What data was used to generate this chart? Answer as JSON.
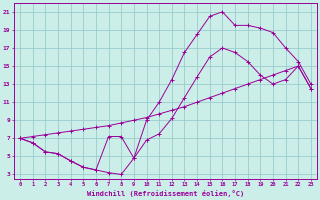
{
  "xlabel": "Windchill (Refroidissement éolien,°C)",
  "background_color": "#cceee8",
  "grid_color": "#99cccc",
  "line_color": "#990099",
  "xlim": [
    -0.5,
    23.5
  ],
  "ylim": [
    2.5,
    22
  ],
  "xticks": [
    0,
    1,
    2,
    3,
    4,
    5,
    6,
    7,
    8,
    9,
    10,
    11,
    12,
    13,
    14,
    15,
    16,
    17,
    18,
    19,
    20,
    21,
    22,
    23
  ],
  "yticks": [
    3,
    5,
    7,
    9,
    11,
    13,
    15,
    17,
    19,
    21
  ],
  "line1_x": [
    0,
    1,
    2,
    3,
    4,
    5,
    6,
    7,
    8,
    9,
    10,
    11,
    12,
    13,
    14,
    15,
    16,
    17,
    18,
    19,
    20,
    21,
    22,
    23
  ],
  "line1_y": [
    7.0,
    6.5,
    5.5,
    5.3,
    4.5,
    3.8,
    3.5,
    3.2,
    3.0,
    4.8,
    6.8,
    7.5,
    9.2,
    11.5,
    13.8,
    16.0,
    17.0,
    16.5,
    15.5,
    14.0,
    13.0,
    13.5,
    15.0,
    12.5
  ],
  "line2_x": [
    0,
    1,
    2,
    3,
    4,
    5,
    6,
    7,
    8,
    9,
    10,
    11,
    12,
    13,
    14,
    15,
    16,
    17,
    18,
    19,
    20,
    21,
    22,
    23
  ],
  "line2_y": [
    7.0,
    6.5,
    5.5,
    5.3,
    4.5,
    3.8,
    3.5,
    7.2,
    7.2,
    4.8,
    9.0,
    11.0,
    13.5,
    16.5,
    18.5,
    20.5,
    21.0,
    19.5,
    19.5,
    19.2,
    18.7,
    17.0,
    15.5,
    13.0
  ],
  "line3_x": [
    0,
    1,
    2,
    3,
    4,
    5,
    6,
    7,
    8,
    9,
    10,
    11,
    12,
    13,
    14,
    15,
    16,
    17,
    18,
    19,
    20,
    21,
    22,
    23
  ],
  "line3_y": [
    7.0,
    7.2,
    7.4,
    7.6,
    7.8,
    8.0,
    8.2,
    8.4,
    8.7,
    9.0,
    9.3,
    9.7,
    10.1,
    10.5,
    11.0,
    11.5,
    12.0,
    12.5,
    13.0,
    13.5,
    14.0,
    14.5,
    15.0,
    12.5
  ]
}
